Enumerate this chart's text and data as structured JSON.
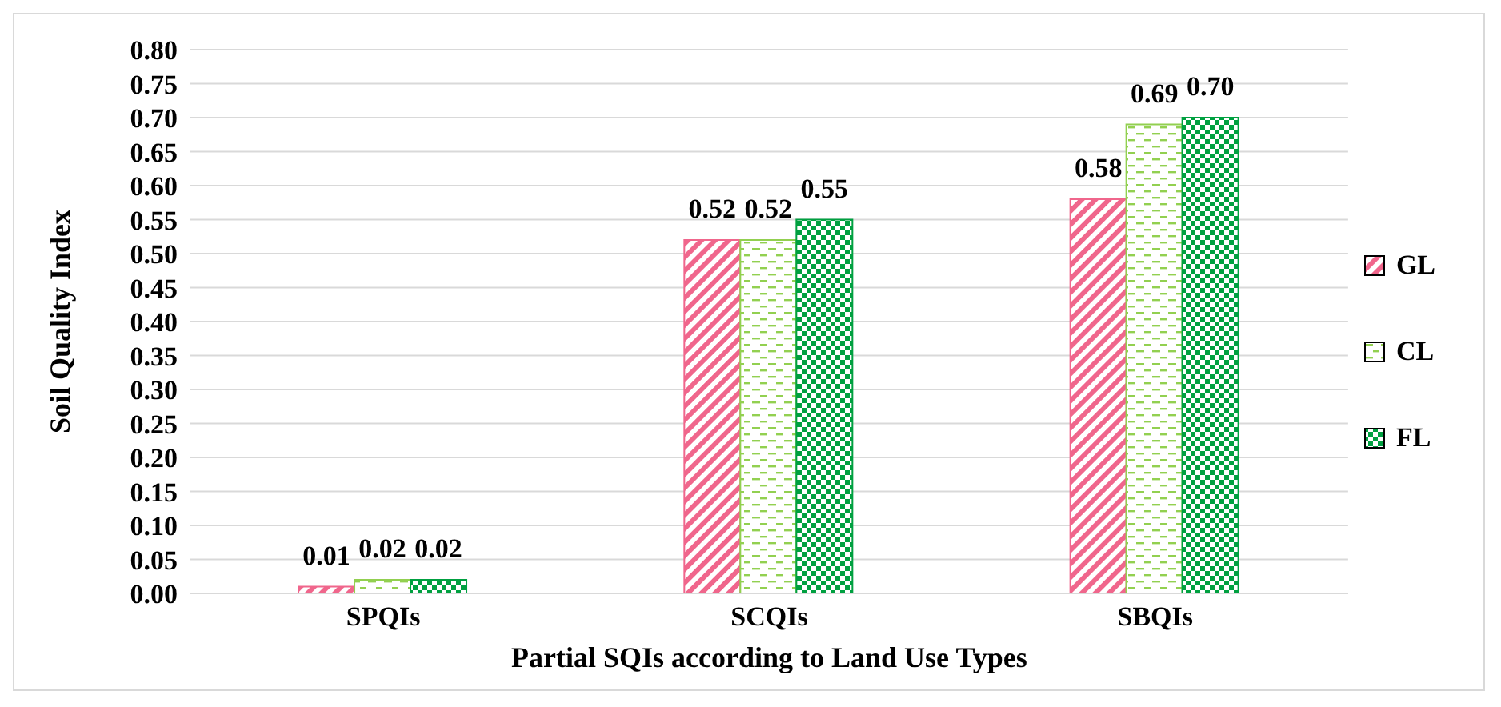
{
  "chart_data": {
    "type": "bar",
    "xlabel": "Partial SQIs according to Land Use Types",
    "ylabel": "Soil Quality Index",
    "categories": [
      "SPQIs",
      "SCQIs",
      "SBQIs"
    ],
    "series": [
      {
        "name": "GL",
        "color": "#f0668c",
        "values": [
          0.01,
          0.52,
          0.58
        ],
        "value_labels": [
          "0.01",
          "0.52",
          "0.58"
        ]
      },
      {
        "name": "CL",
        "color": "#92d050",
        "values": [
          0.02,
          0.52,
          0.69
        ],
        "value_labels": [
          "0.02",
          "0.52",
          "0.69"
        ]
      },
      {
        "name": "FL",
        "color": "#00a040",
        "values": [
          0.02,
          0.55,
          0.7
        ],
        "value_labels": [
          "0.02",
          "0.55",
          "0.70"
        ]
      }
    ],
    "ylim": [
      0,
      0.8
    ],
    "yticks": [
      {
        "value": 0,
        "label": "0.00"
      },
      {
        "value": 0.05,
        "label": "0.05"
      },
      {
        "value": 0.1,
        "label": "0.10"
      },
      {
        "value": 0.15,
        "label": "0.15"
      },
      {
        "value": 0.2,
        "label": "0.20"
      },
      {
        "value": 0.25,
        "label": "0.25"
      },
      {
        "value": 0.3,
        "label": "0.30"
      },
      {
        "value": 0.35,
        "label": "0.35"
      },
      {
        "value": 0.4,
        "label": "0.40"
      },
      {
        "value": 0.45,
        "label": "0.45"
      },
      {
        "value": 0.5,
        "label": "0.50"
      },
      {
        "value": 0.55,
        "label": "0.55"
      },
      {
        "value": 0.6,
        "label": "0.60"
      },
      {
        "value": 0.65,
        "label": "0.65"
      },
      {
        "value": 0.7,
        "label": "0.70"
      },
      {
        "value": 0.75,
        "label": "0.75"
      },
      {
        "value": 0.8,
        "label": "0.80"
      }
    ],
    "grid": "y",
    "legend": "right"
  }
}
